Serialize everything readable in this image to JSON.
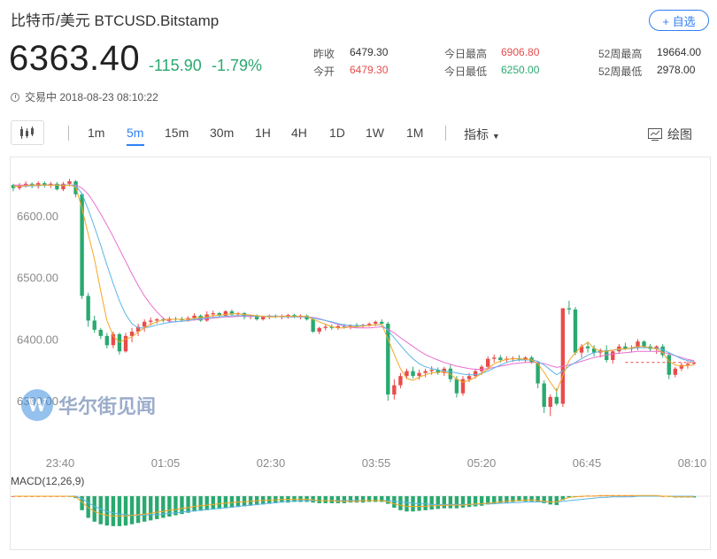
{
  "header": {
    "title": "比特币/美元  BTCUSD.Bitstamp",
    "follow_label": "+ 自选",
    "price": "6363.40",
    "change": "-115.90",
    "change_pct": "-1.79%",
    "status": "交易中 2018-08-23 08:10:22"
  },
  "stats": {
    "prev_close_label": "昨收",
    "prev_close": "6479.30",
    "open_label": "今开",
    "open": "6479.30",
    "high_label": "今日最高",
    "high": "6906.80",
    "low_label": "今日最低",
    "low": "6250.00",
    "high52_label": "52周最高",
    "high52": "19664.00",
    "low52_label": "52周最低",
    "low52": "2978.00"
  },
  "toolbar": {
    "timeframes": [
      "1m",
      "5m",
      "15m",
      "30m",
      "1H",
      "4H",
      "1D",
      "1W",
      "1M"
    ],
    "active": "5m",
    "indicator_label": "指标",
    "draw_label": "绘图"
  },
  "watermark": {
    "logo_letter": "W",
    "text": "华尔街见闻"
  },
  "colors": {
    "up": "#e84c4c",
    "down": "#29a96f",
    "accent": "#2f7ff3",
    "ma_short": "#f5a623",
    "ma_mid": "#5ab4e8",
    "ma_long": "#ea6fd1"
  },
  "chart_data": {
    "type": "candlestick",
    "title": "",
    "ylabel": "",
    "yticks": [
      "6600.00",
      "6500.00",
      "6400.00",
      "6300.00"
    ],
    "ylim": [
      6250,
      6680
    ],
    "xticks": [
      "23:40",
      "01:05",
      "02:30",
      "03:55",
      "05:20",
      "06:45",
      "08:10"
    ],
    "candles": [
      [
        6650,
        6652,
        6640,
        6645
      ],
      [
        6645,
        6653,
        6642,
        6650
      ],
      [
        6650,
        6656,
        6646,
        6652
      ],
      [
        6652,
        6654,
        6645,
        6648
      ],
      [
        6648,
        6656,
        6644,
        6653
      ],
      [
        6653,
        6656,
        6646,
        6649
      ],
      [
        6649,
        6655,
        6645,
        6652
      ],
      [
        6652,
        6655,
        6641,
        6643
      ],
      [
        6643,
        6655,
        6640,
        6652
      ],
      [
        6652,
        6660,
        6648,
        6656
      ],
      [
        6656,
        6658,
        6630,
        6635
      ],
      [
        6635,
        6637,
        6465,
        6470
      ],
      [
        6470,
        6475,
        6420,
        6430
      ],
      [
        6430,
        6438,
        6410,
        6415
      ],
      [
        6415,
        6418,
        6400,
        6405
      ],
      [
        6405,
        6410,
        6385,
        6390
      ],
      [
        6390,
        6412,
        6385,
        6408
      ],
      [
        6408,
        6410,
        6375,
        6380
      ],
      [
        6380,
        6410,
        6378,
        6405
      ],
      [
        6405,
        6418,
        6395,
        6412
      ],
      [
        6412,
        6425,
        6405,
        6420
      ],
      [
        6420,
        6432,
        6412,
        6428
      ],
      [
        6428,
        6435,
        6422,
        6430
      ],
      [
        6430,
        6434,
        6425,
        6432
      ],
      [
        6432,
        6435,
        6427,
        6430
      ],
      [
        6430,
        6436,
        6426,
        6433
      ],
      [
        6433,
        6436,
        6428,
        6432
      ],
      [
        6432,
        6436,
        6428,
        6431
      ],
      [
        6431,
        6437,
        6428,
        6434
      ],
      [
        6434,
        6442,
        6430,
        6438
      ],
      [
        6438,
        6440,
        6428,
        6430
      ],
      [
        6430,
        6445,
        6428,
        6440
      ],
      [
        6440,
        6446,
        6436,
        6442
      ],
      [
        6442,
        6444,
        6436,
        6438
      ],
      [
        6438,
        6447,
        6436,
        6445
      ],
      [
        6445,
        6448,
        6438,
        6440
      ],
      [
        6440,
        6444,
        6436,
        6442
      ],
      [
        6442,
        6444,
        6432,
        6436
      ],
      [
        6436,
        6440,
        6432,
        6438
      ],
      [
        6438,
        6440,
        6430,
        6432
      ],
      [
        6432,
        6438,
        6430,
        6436
      ],
      [
        6436,
        6440,
        6432,
        6438
      ],
      [
        6438,
        6440,
        6434,
        6436
      ],
      [
        6436,
        6440,
        6432,
        6437
      ],
      [
        6437,
        6441,
        6433,
        6439
      ],
      [
        6439,
        6441,
        6434,
        6436
      ],
      [
        6436,
        6440,
        6432,
        6438
      ],
      [
        6438,
        6440,
        6430,
        6432
      ],
      [
        6432,
        6434,
        6410,
        6412
      ],
      [
        6412,
        6420,
        6408,
        6418
      ],
      [
        6418,
        6424,
        6414,
        6420
      ],
      [
        6420,
        6424,
        6415,
        6418
      ],
      [
        6418,
        6424,
        6415,
        6421
      ],
      [
        6421,
        6425,
        6417,
        6420
      ],
      [
        6420,
        6424,
        6416,
        6422
      ],
      [
        6422,
        6426,
        6418,
        6421
      ],
      [
        6421,
        6425,
        6418,
        6423
      ],
      [
        6423,
        6427,
        6420,
        6425
      ],
      [
        6425,
        6430,
        6421,
        6428
      ],
      [
        6428,
        6432,
        6423,
        6425
      ],
      [
        6425,
        6428,
        6300,
        6310
      ],
      [
        6310,
        6335,
        6302,
        6325
      ],
      [
        6325,
        6345,
        6320,
        6340
      ],
      [
        6340,
        6352,
        6335,
        6348
      ],
      [
        6348,
        6355,
        6336,
        6340
      ],
      [
        6340,
        6350,
        6334,
        6345
      ],
      [
        6345,
        6352,
        6338,
        6348
      ],
      [
        6348,
        6356,
        6342,
        6350
      ],
      [
        6350,
        6354,
        6342,
        6345
      ],
      [
        6345,
        6355,
        6340,
        6352
      ],
      [
        6352,
        6358,
        6330,
        6335
      ],
      [
        6335,
        6340,
        6305,
        6312
      ],
      [
        6312,
        6340,
        6308,
        6335
      ],
      [
        6335,
        6345,
        6330,
        6340
      ],
      [
        6340,
        6352,
        6336,
        6348
      ],
      [
        6348,
        6358,
        6342,
        6355
      ],
      [
        6355,
        6372,
        6350,
        6368
      ],
      [
        6368,
        6375,
        6362,
        6370
      ],
      [
        6370,
        6374,
        6362,
        6366
      ],
      [
        6366,
        6372,
        6362,
        6368
      ],
      [
        6368,
        6372,
        6363,
        6369
      ],
      [
        6369,
        6374,
        6364,
        6367
      ],
      [
        6367,
        6372,
        6362,
        6370
      ],
      [
        6370,
        6373,
        6360,
        6362
      ],
      [
        6362,
        6364,
        6320,
        6328
      ],
      [
        6328,
        6333,
        6280,
        6290
      ],
      [
        6290,
        6310,
        6275,
        6306
      ],
      [
        6306,
        6320,
        6292,
        6295
      ],
      [
        6295,
        6450,
        6290,
        6450
      ],
      [
        6450,
        6462,
        6440,
        6448
      ],
      [
        6448,
        6452,
        6374,
        6378
      ],
      [
        6378,
        6392,
        6370,
        6388
      ],
      [
        6388,
        6394,
        6378,
        6385
      ],
      [
        6385,
        6390,
        6372,
        6378
      ],
      [
        6378,
        6385,
        6370,
        6382
      ],
      [
        6382,
        6390,
        6362,
        6366
      ],
      [
        6366,
        6382,
        6360,
        6380
      ],
      [
        6380,
        6392,
        6376,
        6388
      ],
      [
        6388,
        6394,
        6382,
        6384
      ],
      [
        6384,
        6390,
        6378,
        6386
      ],
      [
        6386,
        6400,
        6382,
        6396
      ],
      [
        6396,
        6398,
        6385,
        6388
      ],
      [
        6388,
        6392,
        6380,
        6384
      ],
      [
        6384,
        6390,
        6376,
        6388
      ],
      [
        6388,
        6392,
        6370,
        6374
      ],
      [
        6374,
        6378,
        6335,
        6342
      ],
      [
        6342,
        6355,
        6338,
        6352
      ],
      [
        6352,
        6362,
        6348,
        6358
      ],
      [
        6358,
        6364,
        6352,
        6360
      ],
      [
        6360,
        6364,
        6358,
        6362
      ]
    ],
    "ma_short": [
      6648,
      6648,
      6649,
      6650,
      6650,
      6650,
      6650,
      6650,
      6649,
      6650,
      6647,
      6612,
      6570,
      6530,
      6478,
      6430,
      6405,
      6395,
      6400,
      6403,
      6412,
      6418,
      6424,
      6428,
      6431,
      6432,
      6432,
      6432,
      6432,
      6434,
      6435,
      6436,
      6438,
      6439,
      6440,
      6441,
      6441,
      6440,
      6439,
      6438,
      6437,
      6436,
      6436,
      6437,
      6437,
      6437,
      6437,
      6437,
      6432,
      6428,
      6424,
      6420,
      6418,
      6418,
      6420,
      6420,
      6421,
      6422,
      6423,
      6424,
      6400,
      6375,
      6352,
      6336,
      6333,
      6338,
      6342,
      6345,
      6346,
      6347,
      6343,
      6335,
      6330,
      6333,
      6338,
      6344,
      6352,
      6360,
      6364,
      6367,
      6368,
      6368,
      6367,
      6366,
      6360,
      6346,
      6330,
      6315,
      6340,
      6365,
      6378,
      6388,
      6395,
      6385,
      6380,
      6380,
      6382,
      6384,
      6384,
      6386,
      6388,
      6388,
      6386,
      6384,
      6378,
      6364,
      6358,
      6356,
      6357,
      6358
    ],
    "ma_mid": [
      6648,
      6648,
      6648,
      6649,
      6649,
      6650,
      6650,
      6650,
      6650,
      6650,
      6649,
      6636,
      6610,
      6582,
      6552,
      6520,
      6490,
      6462,
      6440,
      6425,
      6418,
      6418,
      6420,
      6423,
      6425,
      6427,
      6428,
      6429,
      6430,
      6432,
      6433,
      6434,
      6435,
      6436,
      6437,
      6438,
      6438,
      6438,
      6438,
      6437,
      6437,
      6437,
      6437,
      6436,
      6436,
      6436,
      6436,
      6436,
      6434,
      6432,
      6430,
      6428,
      6425,
      6423,
      6422,
      6422,
      6422,
      6422,
      6423,
      6423,
      6414,
      6402,
      6390,
      6378,
      6368,
      6360,
      6355,
      6352,
      6350,
      6348,
      6347,
      6345,
      6343,
      6342,
      6342,
      6344,
      6348,
      6353,
      6358,
      6362,
      6365,
      6366,
      6366,
      6366,
      6364,
      6358,
      6350,
      6342,
      6348,
      6356,
      6362,
      6368,
      6374,
      6378,
      6380,
      6381,
      6382,
      6383,
      6384,
      6385,
      6386,
      6386,
      6386,
      6385,
      6383,
      6378,
      6373,
      6368,
      6365,
      6364
    ],
    "ma_long": [
      6650,
      6650,
      6650,
      6650,
      6650,
      6650,
      6650,
      6650,
      6650,
      6650,
      6650,
      6645,
      6635,
      6620,
      6603,
      6585,
      6566,
      6546,
      6526,
      6506,
      6487,
      6470,
      6456,
      6444,
      6434,
      6428,
      6428,
      6429,
      6430,
      6431,
      6432,
      6433,
      6434,
      6435,
      6436,
      6436,
      6437,
      6437,
      6437,
      6437,
      6437,
      6437,
      6437,
      6437,
      6436,
      6436,
      6436,
      6436,
      6435,
      6433,
      6430,
      6427,
      6424,
      6421,
      6419,
      6418,
      6418,
      6418,
      6419,
      6420,
      6416,
      6410,
      6402,
      6395,
      6388,
      6381,
      6375,
      6370,
      6366,
      6362,
      6359,
      6356,
      6354,
      6352,
      6351,
      6351,
      6352,
      6354,
      6356,
      6358,
      6360,
      6361,
      6362,
      6362,
      6362,
      6360,
      6357,
      6354,
      6356,
      6358,
      6361,
      6364,
      6367,
      6370,
      6372,
      6374,
      6376,
      6377,
      6378,
      6379,
      6380,
      6380,
      6380,
      6380,
      6379,
      6376,
      6373,
      6370,
      6367,
      6365
    ],
    "macd_label": "MACD(12,26,9)",
    "macd_hist": [
      0,
      0,
      0,
      0,
      0,
      0,
      0,
      0,
      0,
      -1,
      -3,
      -22,
      -34,
      -40,
      -44,
      -46,
      -47,
      -47,
      -46,
      -44,
      -42,
      -40,
      -38,
      -36,
      -34,
      -32,
      -30,
      -28,
      -26,
      -24,
      -23,
      -22,
      -21,
      -20,
      -19,
      -18,
      -17,
      -16,
      -15,
      -14,
      -13,
      -12,
      -11,
      -10,
      -10,
      -9,
      -9,
      -9,
      -10,
      -11,
      -11,
      -11,
      -11,
      -11,
      -10,
      -10,
      -10,
      -9,
      -9,
      -9,
      -12,
      -18,
      -22,
      -24,
      -24,
      -23,
      -22,
      -21,
      -20,
      -19,
      -19,
      -19,
      -18,
      -17,
      -16,
      -15,
      -13,
      -12,
      -11,
      -10,
      -9,
      -8,
      -8,
      -8,
      -9,
      -11,
      -13,
      -14,
      -6,
      -2,
      -1,
      0,
      1,
      1,
      1,
      1,
      1,
      1,
      1,
      1,
      1,
      1,
      1,
      1,
      0,
      -1,
      -2,
      -2,
      -2,
      -2
    ],
    "macd_dif": [
      0,
      0,
      0,
      0,
      0,
      0,
      0,
      0,
      0,
      0,
      -1,
      -9,
      -18,
      -24,
      -28,
      -30,
      -31,
      -31,
      -31,
      -30,
      -29,
      -28,
      -27,
      -25,
      -24,
      -22,
      -21,
      -19,
      -18,
      -16,
      -15,
      -14,
      -13,
      -12,
      -11,
      -10,
      -9,
      -9,
      -8,
      -7,
      -7,
      -6,
      -6,
      -5,
      -5,
      -5,
      -5,
      -5,
      -6,
      -7,
      -7,
      -7,
      -8,
      -8,
      -8,
      -8,
      -7,
      -7,
      -7,
      -7,
      -9,
      -12,
      -14,
      -16,
      -16,
      -16,
      -16,
      -15,
      -15,
      -14,
      -14,
      -14,
      -14,
      -13,
      -12,
      -12,
      -11,
      -10,
      -9,
      -8,
      -7,
      -7,
      -6,
      -6,
      -7,
      -8,
      -9,
      -9,
      -5,
      -2,
      -1,
      0,
      0,
      0,
      1,
      1,
      1,
      1,
      1,
      1,
      1,
      1,
      1,
      1,
      0,
      0,
      -1,
      -1,
      -1,
      -1
    ],
    "macd_dea": [
      0,
      0,
      0,
      0,
      0,
      0,
      0,
      0,
      0,
      0,
      0,
      -4,
      -10,
      -16,
      -20,
      -24,
      -26,
      -28,
      -29,
      -30,
      -30,
      -30,
      -29,
      -29,
      -28,
      -27,
      -26,
      -25,
      -24,
      -23,
      -22,
      -21,
      -20,
      -19,
      -18,
      -17,
      -16,
      -15,
      -14,
      -13,
      -12,
      -11,
      -10,
      -9,
      -8,
      -8,
      -7,
      -7,
      -7,
      -7,
      -7,
      -7,
      -7,
      -7,
      -7,
      -7,
      -7,
      -7,
      -7,
      -7,
      -7,
      -8,
      -9,
      -10,
      -11,
      -12,
      -12,
      -13,
      -13,
      -13,
      -13,
      -13,
      -13,
      -13,
      -13,
      -12,
      -12,
      -12,
      -11,
      -11,
      -10,
      -10,
      -9,
      -9,
      -9,
      -9,
      -9,
      -9,
      -8,
      -7,
      -6,
      -5,
      -4,
      -3,
      -2,
      -2,
      -1,
      -1,
      -1,
      -1,
      0,
      0,
      0,
      0,
      0,
      0,
      0,
      0,
      0,
      0
    ]
  }
}
